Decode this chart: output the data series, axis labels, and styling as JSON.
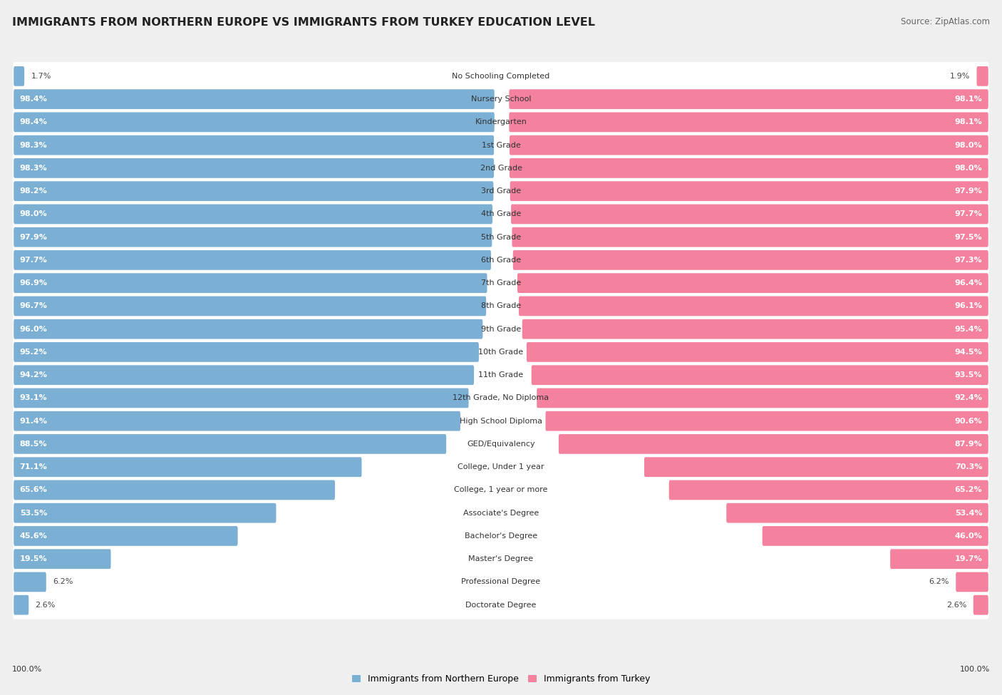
{
  "title": "IMMIGRANTS FROM NORTHERN EUROPE VS IMMIGRANTS FROM TURKEY EDUCATION LEVEL",
  "source": "Source: ZipAtlas.com",
  "categories": [
    "No Schooling Completed",
    "Nursery School",
    "Kindergarten",
    "1st Grade",
    "2nd Grade",
    "3rd Grade",
    "4th Grade",
    "5th Grade",
    "6th Grade",
    "7th Grade",
    "8th Grade",
    "9th Grade",
    "10th Grade",
    "11th Grade",
    "12th Grade, No Diploma",
    "High School Diploma",
    "GED/Equivalency",
    "College, Under 1 year",
    "College, 1 year or more",
    "Associate's Degree",
    "Bachelor's Degree",
    "Master's Degree",
    "Professional Degree",
    "Doctorate Degree"
  ],
  "values_left": [
    1.7,
    98.4,
    98.4,
    98.3,
    98.3,
    98.2,
    98.0,
    97.9,
    97.7,
    96.9,
    96.7,
    96.0,
    95.2,
    94.2,
    93.1,
    91.4,
    88.5,
    71.1,
    65.6,
    53.5,
    45.6,
    19.5,
    6.2,
    2.6
  ],
  "values_right": [
    1.9,
    98.1,
    98.1,
    98.0,
    98.0,
    97.9,
    97.7,
    97.5,
    97.3,
    96.4,
    96.1,
    95.4,
    94.5,
    93.5,
    92.4,
    90.6,
    87.9,
    70.3,
    65.2,
    53.4,
    46.0,
    19.7,
    6.2,
    2.6
  ],
  "color_left": "#7bafd4",
  "color_right": "#f4829e",
  "background_color": "#efefef",
  "bar_background": "#ffffff",
  "legend_left": "Immigrants from Northern Europe",
  "legend_right": "Immigrants from Turkey",
  "label_fontsize": 8.0,
  "value_fontsize": 8.0,
  "title_fontsize": 11.5,
  "source_fontsize": 8.5,
  "footer_value_left": "100.0%",
  "footer_value_right": "100.0%"
}
